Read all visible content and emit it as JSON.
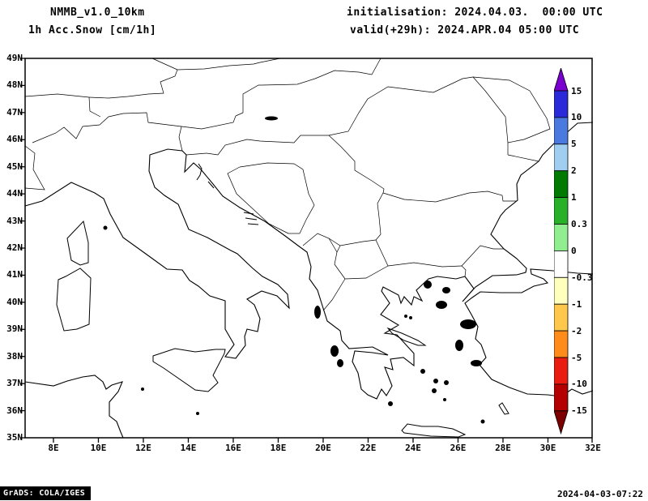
{
  "header": {
    "model": "NMMB_v1.0_10km",
    "field": "1h Acc.Snow [cm/1h]",
    "init_line": "initialisation: 2024.04.03.  00:00 UTC",
    "valid_line": "valid(+29h): 2024.APR.04 05:00 UTC"
  },
  "map": {
    "lat_labels": [
      "49N",
      "48N",
      "47N",
      "46N",
      "45N",
      "44N",
      "43N",
      "42N",
      "41N",
      "40N",
      "39N",
      "38N",
      "37N",
      "36N",
      "35N"
    ],
    "lon_labels": [
      "8E",
      "10E",
      "12E",
      "14E",
      "16E",
      "18E",
      "20E",
      "22E",
      "24E",
      "26E",
      "28E",
      "30E",
      "32E"
    ]
  },
  "colorbar": {
    "levels": [
      "15",
      "10",
      "5",
      "2",
      "1",
      "0.3",
      "0",
      "-0.3",
      "-1",
      "-2",
      "-5",
      "-10",
      "-15"
    ],
    "colors": [
      "#7a00d0",
      "#2a2ad8",
      "#4a7ae0",
      "#a0cef0",
      "#007a00",
      "#28b028",
      "#90ee90",
      "#ffffff",
      "#ffffbe",
      "#ffc84c",
      "#ff8c1a",
      "#e81c10",
      "#b40000",
      "#7c0000"
    ]
  },
  "footer": {
    "left": "GrADS: COLA/IGES",
    "right": "2024-04-03-07:22"
  },
  "chart_data": {
    "type": "heatmap",
    "title": "1h Acc.Snow [cm/1h]",
    "region": {
      "lon_min": "8E",
      "lon_max": "32E",
      "lat_min": "35N",
      "lat_max": "49N"
    },
    "colorbar_levels": [
      15,
      10,
      5,
      2,
      1,
      0.3,
      0,
      -0.3,
      -1,
      -2,
      -5,
      -10,
      -15
    ],
    "shaded_values_visible": "none - map area shows only coastlines and borders, no shaded snow field"
  }
}
